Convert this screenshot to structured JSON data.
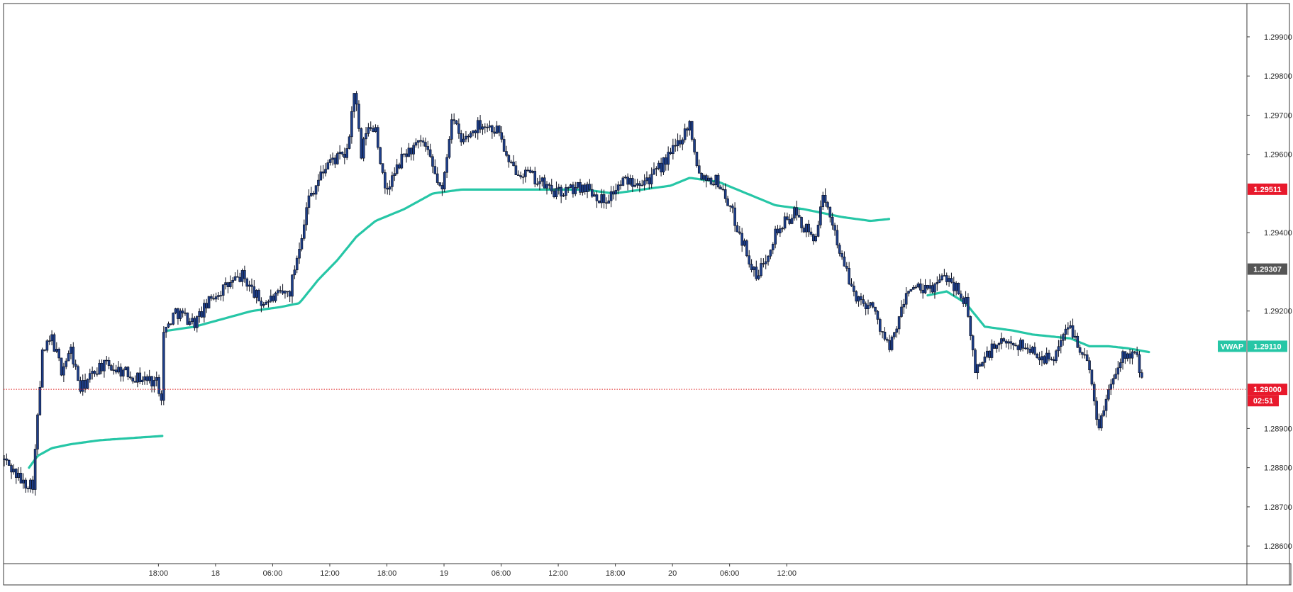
{
  "chart_data": {
    "type": "candlestick",
    "instrument_hint": "",
    "x_tick_labels": [
      "18:00",
      "18",
      "06:00",
      "12:00",
      "18:00",
      "19",
      "06:00",
      "12:00",
      "18:00",
      "20",
      "06:00",
      "12:00"
    ],
    "y_tick_labels": [
      "1.29900",
      "1.29800",
      "1.29700",
      "1.29600",
      "1.29400",
      "1.29200",
      "1.28900",
      "1.28800",
      "1.28700",
      "1.28600"
    ],
    "ylim": [
      1.28555,
      1.29985
    ],
    "grid": false,
    "colors": {
      "candle_body": "#1e3f8a",
      "candle_outline": "#0b0f1e",
      "vwap": "#26c6a6",
      "price_line": "#e02020",
      "label_red": "#e8192c",
      "label_gray": "#555555",
      "vwap_label": "#26c6a6"
    },
    "vwap_label": "VWAP",
    "price_labels": [
      {
        "text": "1.29511",
        "value": 1.29511,
        "color": "red"
      },
      {
        "text": "1.29307",
        "value": 1.29307,
        "color": "gray"
      },
      {
        "text": "1.29110",
        "value": 1.2911,
        "color": "vwap"
      },
      {
        "text": "1.29000",
        "value": 1.29,
        "color": "red"
      }
    ],
    "countdown": "02:51",
    "current_price": 1.29,
    "price_anchors": [
      [
        0,
        1.2882
      ],
      [
        2,
        1.2876
      ],
      [
        3,
        1.2876
      ],
      [
        4,
        1.2909
      ],
      [
        5,
        1.2913
      ],
      [
        6,
        1.2905
      ],
      [
        7,
        1.291
      ],
      [
        8,
        1.29
      ],
      [
        10,
        1.2906
      ],
      [
        11,
        1.2906
      ],
      [
        14,
        1.2903
      ],
      [
        16,
        1.2902
      ],
      [
        16.6,
        1.2898
      ],
      [
        16.7,
        1.2914
      ],
      [
        18,
        1.292
      ],
      [
        20,
        1.2917
      ],
      [
        22,
        1.2924
      ],
      [
        25,
        1.2929
      ],
      [
        27,
        1.2922
      ],
      [
        30,
        1.2925
      ],
      [
        32,
        1.2949
      ],
      [
        34,
        1.2958
      ],
      [
        36,
        1.296
      ],
      [
        36.8,
        1.2977
      ],
      [
        37.5,
        1.2959
      ],
      [
        38,
        1.2966
      ],
      [
        39,
        1.2967
      ],
      [
        40,
        1.295
      ],
      [
        42,
        1.296
      ],
      [
        44,
        1.2963
      ],
      [
        46,
        1.295
      ],
      [
        47,
        1.297
      ],
      [
        48,
        1.2963
      ],
      [
        50,
        1.2968
      ],
      [
        52,
        1.2966
      ],
      [
        53,
        1.2957
      ],
      [
        55,
        1.2955
      ],
      [
        58,
        1.295
      ],
      [
        61,
        1.2952
      ],
      [
        63,
        1.2948
      ],
      [
        65,
        1.2953
      ],
      [
        68,
        1.2954
      ],
      [
        70,
        1.296
      ],
      [
        72,
        1.2968
      ],
      [
        73,
        1.2955
      ],
      [
        75,
        1.2953
      ],
      [
        76,
        1.2948
      ],
      [
        78,
        1.2935
      ],
      [
        79,
        1.2928
      ],
      [
        81,
        1.294
      ],
      [
        83,
        1.2945
      ],
      [
        85,
        1.2938
      ],
      [
        86,
        1.2948
      ],
      [
        87,
        1.2943
      ],
      [
        88,
        1.2933
      ],
      [
        89,
        1.2926
      ],
      [
        90,
        1.2922
      ],
      [
        91,
        1.2922
      ],
      [
        93,
        1.291
      ],
      [
        95,
        1.2926
      ],
      [
        97,
        1.2925
      ],
      [
        99,
        1.2929
      ],
      [
        100,
        1.2926
      ],
      [
        101,
        1.2922
      ],
      [
        102,
        1.2905
      ],
      [
        104,
        1.2911
      ],
      [
        106,
        1.2912
      ],
      [
        108,
        1.291
      ],
      [
        110,
        1.2907
      ],
      [
        111,
        1.2913
      ],
      [
        112,
        1.2916
      ],
      [
        113,
        1.2911
      ],
      [
        114,
        1.2905
      ],
      [
        115,
        1.289
      ],
      [
        116,
        1.29
      ],
      [
        117,
        1.2907
      ],
      [
        118,
        1.291
      ],
      [
        119,
        1.2908
      ],
      [
        119.7,
        1.29
      ]
    ],
    "vwap_anchors": [
      [
        [
          2.6,
          1.288
        ],
        [
          3.5,
          1.2883
        ],
        [
          5,
          1.2885
        ],
        [
          7,
          1.2886
        ],
        [
          10,
          1.2887
        ],
        [
          13,
          1.28875
        ],
        [
          16.6,
          1.28881
        ]
      ],
      [
        [
          17.2,
          1.2915
        ],
        [
          20,
          1.2916
        ],
        [
          23,
          1.2918
        ],
        [
          26,
          1.292
        ],
        [
          29,
          1.2921
        ],
        [
          31,
          1.2922
        ],
        [
          33,
          1.2928
        ],
        [
          35,
          1.2933
        ],
        [
          37,
          1.2939
        ],
        [
          39,
          1.2943
        ],
        [
          42,
          1.2946
        ],
        [
          45,
          1.295
        ],
        [
          48,
          1.2951
        ],
        [
          52,
          1.2951
        ],
        [
          55,
          1.2951
        ],
        [
          58,
          1.2951
        ],
        [
          61,
          1.2951
        ],
        [
          64,
          1.295
        ],
        [
          67,
          1.2951
        ],
        [
          70,
          1.2952
        ],
        [
          72,
          1.2954
        ],
        [
          75,
          1.2953
        ],
        [
          78,
          1.295
        ],
        [
          81,
          1.2947
        ],
        [
          84,
          1.2946
        ],
        [
          86,
          1.2945
        ],
        [
          88,
          1.2944
        ],
        [
          91,
          1.2943
        ],
        [
          93,
          1.29435
        ]
      ],
      [
        [
          97,
          1.2924
        ],
        [
          99,
          1.2925
        ],
        [
          101,
          1.2922
        ],
        [
          103,
          1.2916
        ],
        [
          106,
          1.2915
        ],
        [
          108,
          1.2914
        ],
        [
          110,
          1.29135
        ],
        [
          112,
          1.2913
        ],
        [
          113,
          1.2912
        ],
        [
          114,
          1.2911
        ],
        [
          116,
          1.2911
        ],
        [
          118,
          1.29105
        ],
        [
          120.3,
          1.29095
        ]
      ]
    ],
    "x_tick_hours": [
      8,
      14,
      20,
      26,
      32,
      38,
      44,
      50,
      56,
      62,
      68,
      74
    ],
    "hours_total": 121
  }
}
